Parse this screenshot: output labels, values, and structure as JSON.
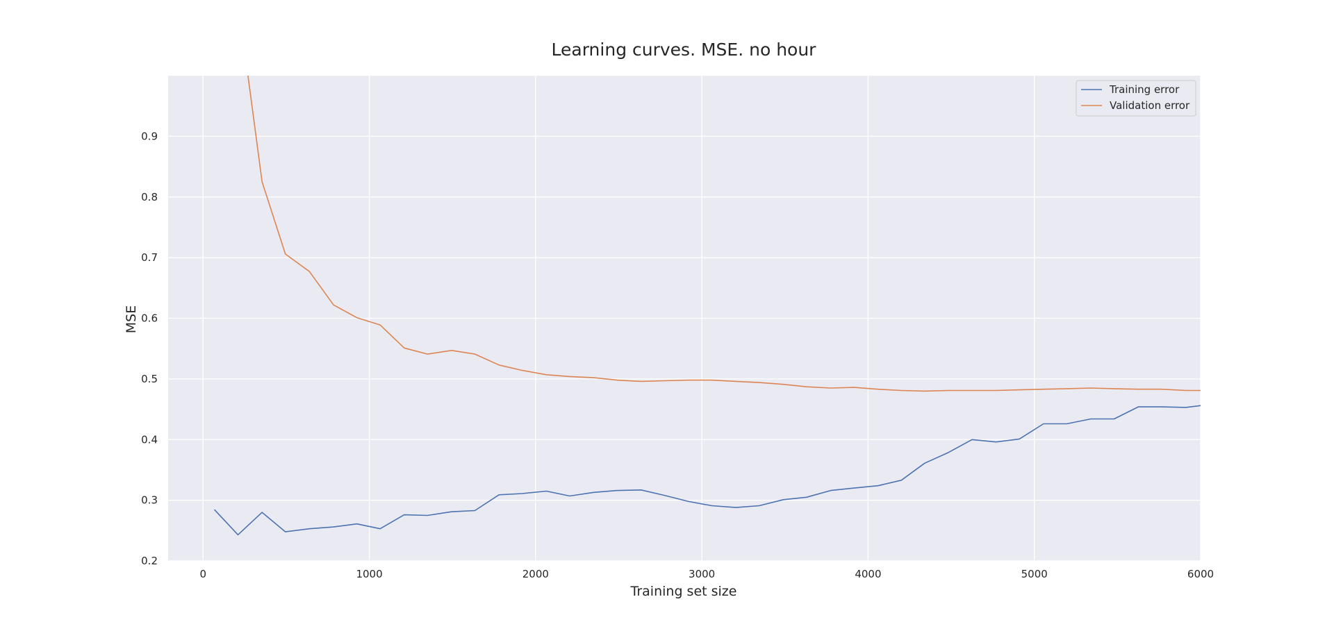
{
  "chart_data": {
    "type": "line",
    "title": "Learning curves. MSE. no hour",
    "xlabel": "Training set size",
    "ylabel": "MSE",
    "xlim": [
      -210,
      6000
    ],
    "ylim": [
      0.2,
      1.0
    ],
    "xticks": [
      0,
      1000,
      2000,
      3000,
      4000,
      5000,
      6000
    ],
    "yticks": [
      0.2,
      0.3,
      0.4,
      0.5,
      0.6,
      0.7,
      0.8,
      0.9
    ],
    "xtick_labels": [
      "0",
      "1000",
      "2000",
      "3000",
      "4000",
      "5000",
      "6000"
    ],
    "ytick_labels": [
      "0.2",
      "0.3",
      "0.4",
      "0.5",
      "0.6",
      "0.7",
      "0.8",
      "0.9"
    ],
    "grid": true,
    "legend_position": "top-right",
    "background_color": "#eaeaf2",
    "grid_color": "#ffffff",
    "text_color": "#262626",
    "series": [
      {
        "name": "Training error",
        "color": "#4c72b0",
        "x": [
          70,
          210,
          355,
          495,
          640,
          785,
          925,
          1065,
          1210,
          1350,
          1495,
          1635,
          1780,
          1920,
          2065,
          2205,
          2350,
          2490,
          2635,
          2775,
          2920,
          3060,
          3205,
          3345,
          3490,
          3630,
          3775,
          3915,
          4060,
          4200,
          4340,
          4485,
          4625,
          4770,
          4910,
          5055,
          5195,
          5340,
          5480,
          5625,
          5765,
          5910,
          6000
        ],
        "y": [
          0.284,
          0.243,
          0.28,
          0.248,
          0.253,
          0.256,
          0.261,
          0.253,
          0.276,
          0.275,
          0.281,
          0.283,
          0.309,
          0.311,
          0.315,
          0.307,
          0.313,
          0.316,
          0.317,
          0.308,
          0.298,
          0.291,
          0.288,
          0.291,
          0.301,
          0.305,
          0.316,
          0.32,
          0.324,
          0.333,
          0.361,
          0.379,
          0.4,
          0.396,
          0.401,
          0.426,
          0.426,
          0.434,
          0.434,
          0.454,
          0.454,
          0.453,
          0.456
        ]
      },
      {
        "name": "Validation error",
        "color": "#dd8452",
        "x": [
          270,
          355,
          495,
          640,
          785,
          925,
          1065,
          1210,
          1350,
          1495,
          1635,
          1780,
          1920,
          2065,
          2205,
          2350,
          2490,
          2635,
          2775,
          2920,
          3060,
          3205,
          3345,
          3490,
          3630,
          3775,
          3915,
          4060,
          4200,
          4340,
          4485,
          4625,
          4770,
          4910,
          5055,
          5195,
          5340,
          5480,
          5625,
          5765,
          5910,
          6000
        ],
        "y": [
          1.0,
          0.825,
          0.706,
          0.677,
          0.622,
          0.601,
          0.589,
          0.551,
          0.541,
          0.547,
          0.541,
          0.523,
          0.514,
          0.507,
          0.504,
          0.502,
          0.498,
          0.496,
          0.497,
          0.498,
          0.498,
          0.496,
          0.494,
          0.491,
          0.487,
          0.485,
          0.486,
          0.483,
          0.481,
          0.48,
          0.481,
          0.481,
          0.481,
          0.482,
          0.483,
          0.484,
          0.485,
          0.484,
          0.483,
          0.483,
          0.481,
          0.481
        ]
      }
    ]
  }
}
